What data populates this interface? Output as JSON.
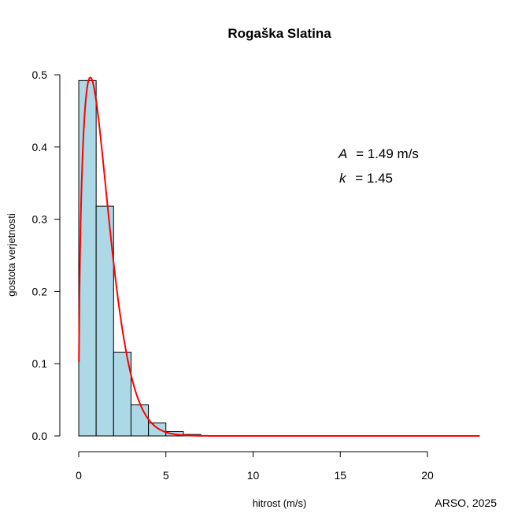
{
  "chart_data": {
    "type": "bar",
    "title": "Rogaška Slatina",
    "xlabel": "hitrost (m/s)",
    "ylabel": "gostota verjetnosti",
    "credit": "ARSO, 2025",
    "xlim": [
      0,
      23
    ],
    "ylim": [
      0,
      0.5
    ],
    "x_ticks": [
      "0",
      "5",
      "10",
      "15",
      "20"
    ],
    "y_ticks": [
      "0.0",
      "0.1",
      "0.2",
      "0.3",
      "0.4",
      "0.5"
    ],
    "bins": [
      {
        "x0": 0,
        "x1": 1,
        "density": 0.492
      },
      {
        "x0": 1,
        "x1": 2,
        "density": 0.318
      },
      {
        "x0": 2,
        "x1": 3,
        "density": 0.116
      },
      {
        "x0": 3,
        "x1": 4,
        "density": 0.043
      },
      {
        "x0": 4,
        "x1": 5,
        "density": 0.018
      },
      {
        "x0": 5,
        "x1": 6,
        "density": 0.006
      },
      {
        "x0": 6,
        "x1": 7,
        "density": 0.002
      }
    ],
    "weibull_fit": {
      "A": 1.49,
      "k": 1.45,
      "A_label": "A",
      "A_text": "=  1.49 m/s",
      "k_label": "k",
      "k_text": "=  1.45",
      "x_max": 23
    },
    "colors": {
      "bar_fill": "#add8e6",
      "bar_stroke": "#000000",
      "curve": "#ff0000"
    },
    "grid": false,
    "legend": "none"
  }
}
